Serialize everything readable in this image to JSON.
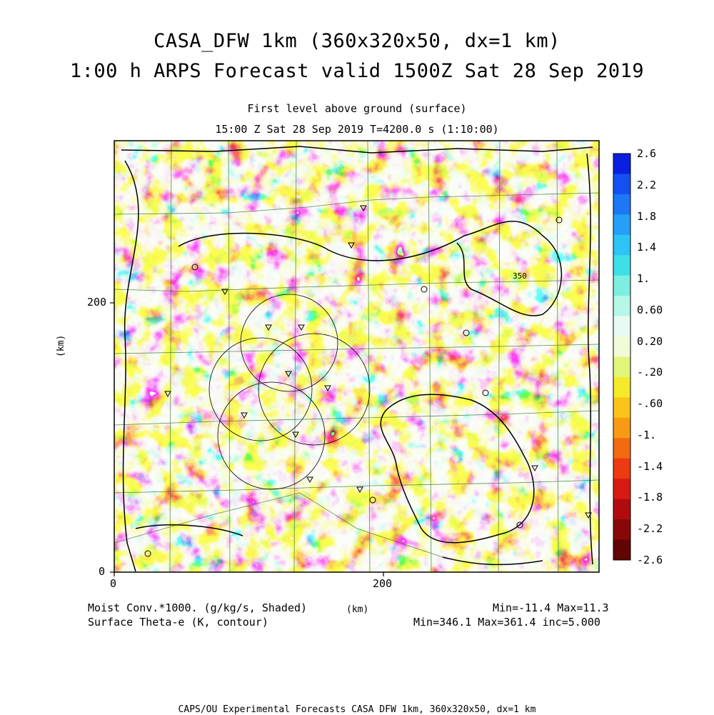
{
  "header": {
    "title_line1": "CASA_DFW 1km (360x320x50, dx=1 km)",
    "title_line2": "1:00 h ARPS Forecast valid 1500Z Sat 28 Sep 2019",
    "level": "First level above ground (surface)",
    "time_info": "15:00 Z Sat 28 Sep 2019   T=4200.0 s (1:10:00)"
  },
  "axes": {
    "ylabel": "(km)",
    "xlabel": "(km)",
    "xticks": [
      "0",
      "200"
    ],
    "yticks": [
      "0",
      "200"
    ],
    "x_range": [
      0,
      360
    ],
    "y_range": [
      0,
      320
    ]
  },
  "map": {
    "contour_label": "350",
    "colorbar": {
      "labels": [
        "2.6",
        "2.2",
        "1.8",
        "1.4",
        "1.",
        "0.60",
        "0.20",
        "-.20",
        "-.60",
        "-1.",
        "-1.4",
        "-1.8",
        "-2.2",
        "-2.6"
      ],
      "colors": [
        "#0a1fe0",
        "#1450f0",
        "#1c78f5",
        "#25a0f8",
        "#2ec4f5",
        "#3ddfe8",
        "#7cefe0",
        "#b6f7e8",
        "#e8fbf2",
        "#f2fbd8",
        "#e2f57a",
        "#f4ea2a",
        "#fbc41a",
        "#f89a14",
        "#f26a12",
        "#ec3a12",
        "#d81a14",
        "#b00c10",
        "#880808",
        "#600404"
      ]
    }
  },
  "footer": {
    "field1": "Moist Conv.*1000. (g/kg/s, Shaded)",
    "field1_range": "Min=-11.4 Max=11.3",
    "field2": "Surface Theta-e (K, contour)",
    "field2_range": "Min=346.1 Max=361.4 inc=5.000",
    "credit": "CAPS/OU Experimental Forecasts  CASA DFW 1km, 360x320x50, dx=1 km"
  }
}
